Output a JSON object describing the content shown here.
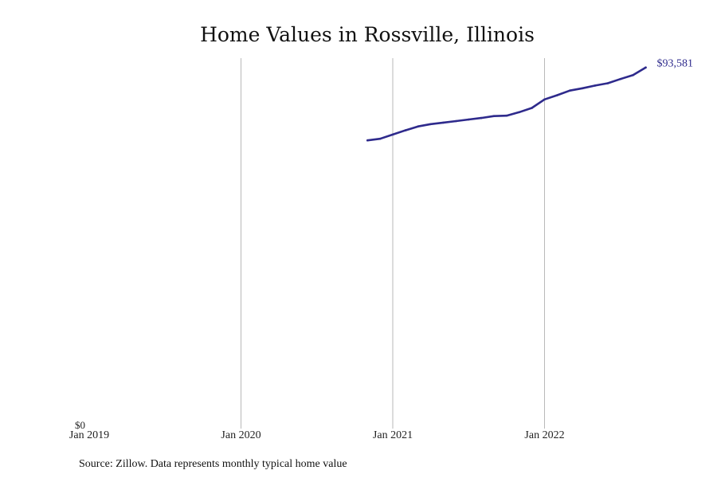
{
  "chart_data": {
    "type": "line",
    "title": "Home Values in Rossville, Illinois",
    "xlabel": "",
    "ylabel": "",
    "x_ticks": [
      "Jan 2019",
      "Jan 2020",
      "Jan 2021",
      "Jan 2022"
    ],
    "y_ticks": [
      "$0"
    ],
    "xlim": [
      "2019-01",
      "2022-12"
    ],
    "ylim": [
      0,
      96000
    ],
    "grid": "vertical",
    "series": [
      {
        "x": [
          "2020-11",
          "2020-12",
          "2021-01",
          "2021-02",
          "2021-03",
          "2021-04",
          "2021-05",
          "2021-06",
          "2021-07",
          "2021-08",
          "2021-09",
          "2021-10",
          "2021-11",
          "2021-12",
          "2022-01",
          "2022-02",
          "2022-03",
          "2022-04",
          "2022-05",
          "2022-06",
          "2022-07",
          "2022-08",
          "2022-09"
        ],
        "values": [
          74700,
          75100,
          76200,
          77300,
          78300,
          78900,
          79300,
          79700,
          80100,
          80500,
          81000,
          81100,
          82000,
          83100,
          85300,
          86400,
          87600,
          88200,
          88900,
          89500,
          90600,
          91600,
          93581
        ]
      }
    ],
    "end_label": "$93,581"
  },
  "source": "Source: Zillow. Data represents monthly typical home value",
  "colors": {
    "line": "#2e2a8c",
    "grid": "#b9b9b9",
    "label": "#2e2a8c"
  }
}
